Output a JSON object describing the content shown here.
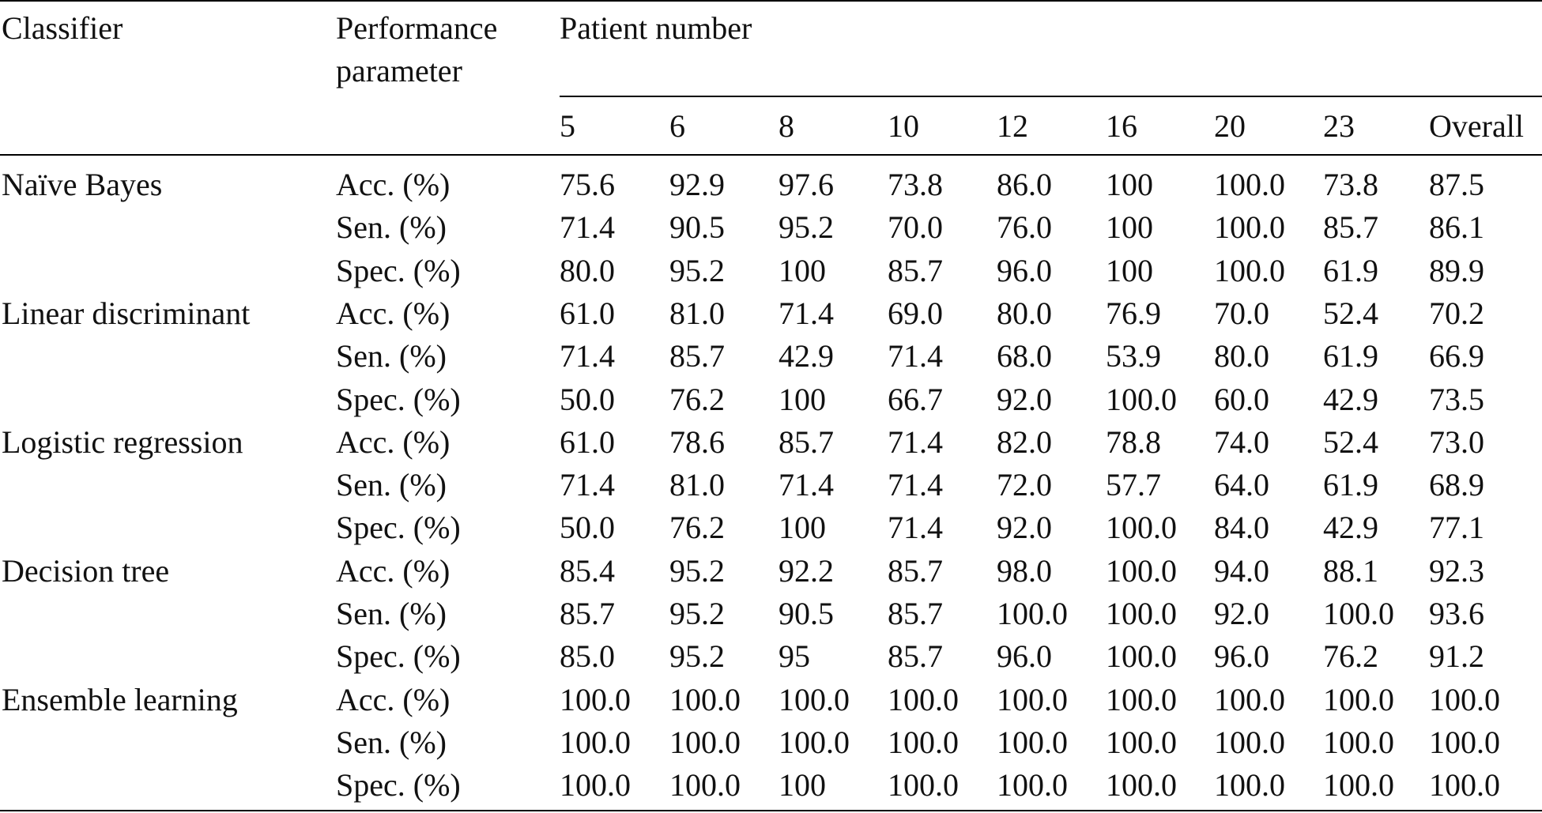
{
  "header": {
    "classifier": "Classifier",
    "performance_line1": "Performance",
    "performance_line2": "parameter",
    "patient_number": "Patient number",
    "columns": [
      "5",
      "6",
      "8",
      "10",
      "12",
      "16",
      "20",
      "23",
      "Overall"
    ]
  },
  "rows": [
    {
      "classifier": "Naïve Bayes",
      "parameter": "Acc. (%)",
      "values": [
        "75.6",
        "92.9",
        "97.6",
        "73.8",
        "86.0",
        "100",
        "100.0",
        "73.8",
        "87.5"
      ]
    },
    {
      "classifier": "",
      "parameter": "Sen. (%)",
      "values": [
        "71.4",
        "90.5",
        "95.2",
        "70.0",
        "76.0",
        "100",
        "100.0",
        "85.7",
        "86.1"
      ]
    },
    {
      "classifier": "",
      "parameter": "Spec. (%)",
      "values": [
        "80.0",
        "95.2",
        "100",
        "85.7",
        "96.0",
        "100",
        "100.0",
        "61.9",
        "89.9"
      ]
    },
    {
      "classifier": "Linear discriminant",
      "parameter": "Acc. (%)",
      "values": [
        "61.0",
        "81.0",
        "71.4",
        "69.0",
        "80.0",
        "76.9",
        "70.0",
        "52.4",
        "70.2"
      ]
    },
    {
      "classifier": "",
      "parameter": "Sen. (%)",
      "values": [
        "71.4",
        "85.7",
        "42.9",
        "71.4",
        "68.0",
        "53.9",
        "80.0",
        "61.9",
        "66.9"
      ]
    },
    {
      "classifier": "",
      "parameter": "Spec. (%)",
      "values": [
        "50.0",
        "76.2",
        "100",
        "66.7",
        "92.0",
        "100.0",
        "60.0",
        "42.9",
        "73.5"
      ]
    },
    {
      "classifier": "Logistic regression",
      "parameter": "Acc. (%)",
      "values": [
        "61.0",
        "78.6",
        "85.7",
        "71.4",
        "82.0",
        "78.8",
        "74.0",
        "52.4",
        "73.0"
      ]
    },
    {
      "classifier": "",
      "parameter": "Sen. (%)",
      "values": [
        "71.4",
        "81.0",
        "71.4",
        "71.4",
        "72.0",
        "57.7",
        "64.0",
        "61.9",
        "68.9"
      ]
    },
    {
      "classifier": "",
      "parameter": "Spec. (%)",
      "values": [
        "50.0",
        "76.2",
        "100",
        "71.4",
        "92.0",
        "100.0",
        "84.0",
        "42.9",
        "77.1"
      ]
    },
    {
      "classifier": "Decision tree",
      "parameter": "Acc. (%)",
      "values": [
        "85.4",
        "95.2",
        "92.2",
        "85.7",
        "98.0",
        "100.0",
        "94.0",
        "88.1",
        "92.3"
      ]
    },
    {
      "classifier": "",
      "parameter": "Sen. (%)",
      "values": [
        "85.7",
        "95.2",
        "90.5",
        "85.7",
        "100.0",
        "100.0",
        "92.0",
        "100.0",
        "93.6"
      ]
    },
    {
      "classifier": "",
      "parameter": "Spec. (%)",
      "values": [
        "85.0",
        "95.2",
        "95",
        "85.7",
        "96.0",
        "100.0",
        "96.0",
        "76.2",
        "91.2"
      ]
    },
    {
      "classifier": "Ensemble learning",
      "parameter": "Acc. (%)",
      "values": [
        "100.0",
        "100.0",
        "100.0",
        "100.0",
        "100.0",
        "100.0",
        "100.0",
        "100.0",
        "100.0"
      ]
    },
    {
      "classifier": "",
      "parameter": "Sen. (%)",
      "values": [
        "100.0",
        "100.0",
        "100.0",
        "100.0",
        "100.0",
        "100.0",
        "100.0",
        "100.0",
        "100.0"
      ]
    },
    {
      "classifier": "",
      "parameter": "Spec. (%)",
      "values": [
        "100.0",
        "100.0",
        "100",
        "100.0",
        "100.0",
        "100.0",
        "100.0",
        "100.0",
        "100.0"
      ]
    }
  ]
}
